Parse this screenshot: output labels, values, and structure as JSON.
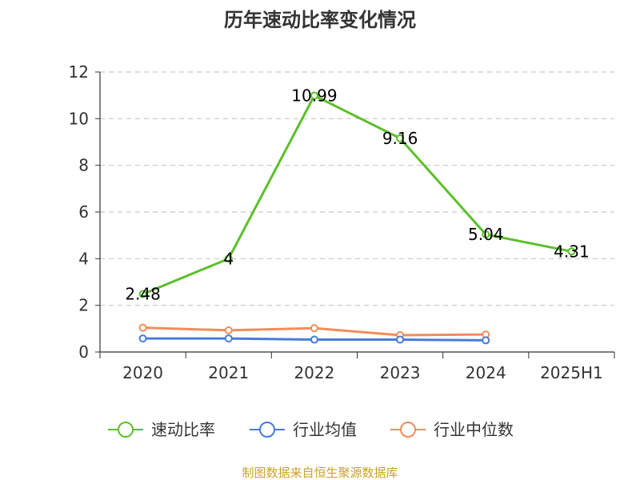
{
  "chart_data": {
    "type": "line",
    "title": "历年速动比率变化情况",
    "categories": [
      "2020",
      "2021",
      "2022",
      "2023",
      "2024",
      "2025H1"
    ],
    "y_ticks": [
      "0",
      "2",
      "4",
      "6",
      "8",
      "10",
      "12"
    ],
    "ylim": [
      0,
      12
    ],
    "grid": true,
    "legend_position": "bottom",
    "series": [
      {
        "name": "速动比率",
        "color": "#5cbf2a",
        "values": [
          2.48,
          4,
          10.99,
          9.16,
          5.04,
          4.31
        ],
        "labels": [
          "2.48",
          "4",
          "10.99",
          "9.16",
          "5.04",
          "4.31"
        ]
      },
      {
        "name": "行业均值",
        "color": "#4a7bd9",
        "values": [
          0.58,
          0.58,
          0.53,
          0.53,
          0.5,
          null
        ],
        "labels": []
      },
      {
        "name": "行业中位数",
        "color": "#f28c5a",
        "values": [
          1.04,
          0.93,
          1.02,
          0.72,
          0.75,
          null
        ],
        "labels": []
      }
    ]
  },
  "source": "制图数据来自恒生聚源数据库"
}
